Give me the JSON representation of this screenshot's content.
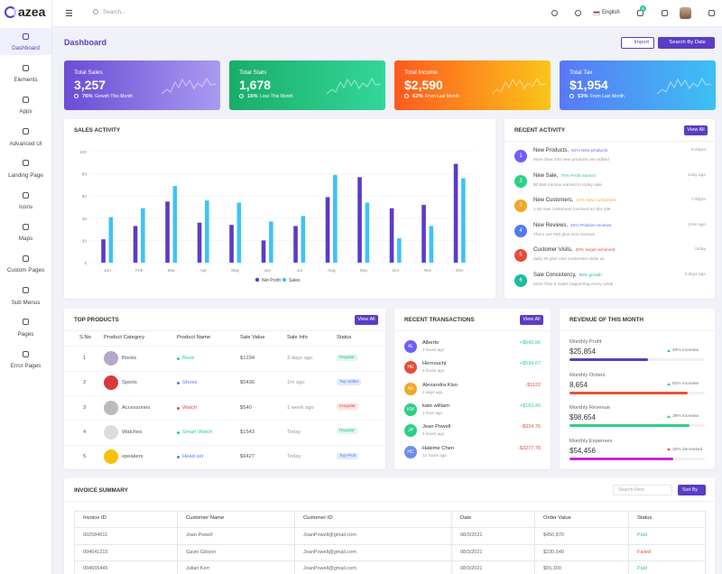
{
  "header": {
    "logo": "azea",
    "search_placeholder": "Search...",
    "language": "English",
    "mail_badge": "5"
  },
  "sidebar": {
    "items": [
      "Dashboard",
      "Elements",
      "Apps",
      "Advanced UI",
      "Landing Page",
      "Icons",
      "Maps",
      "Custom Pages",
      "Sub Menus",
      "Pages",
      "Error Pages"
    ]
  },
  "page": {
    "title": "Dashboard",
    "buttons": [
      "Import",
      "Search By Date"
    ]
  },
  "stats": [
    {
      "title": "Total Sales",
      "value": "3,257",
      "percent": "76%",
      "note": "Growth This Month"
    },
    {
      "title": "Total Stats",
      "value": "1,678",
      "percent": "15%",
      "note": "Loss This Month"
    },
    {
      "title": "Total Income",
      "value": "$2,590",
      "percent": "62%",
      "note": "From Last Month"
    },
    {
      "title": "Total Tax",
      "value": "$1,954",
      "percent": "53%",
      "note": "From Last Month"
    }
  ],
  "chart_data": {
    "type": "bar",
    "title": "SALES ACTIVITY",
    "categories": [
      "Jan",
      "Feb",
      "Mar",
      "Apr",
      "May",
      "Jun",
      "Jul",
      "Aug",
      "Sep",
      "Oct",
      "Nov",
      "Dec"
    ],
    "series": [
      {
        "name": "Net Profit",
        "color": "#5b3cc4",
        "values": [
          21,
          33,
          55,
          36,
          34,
          20,
          33,
          59,
          77,
          49,
          52,
          89
        ]
      },
      {
        "name": "Sales",
        "color": "#3ec3f5",
        "values": [
          41,
          49,
          69,
          56,
          54,
          37,
          42,
          79,
          54,
          22,
          33,
          76
        ]
      }
    ],
    "ylim": [
      0,
      100
    ],
    "yticks": [
      0,
      20,
      40,
      60,
      80,
      100
    ],
    "grid": true,
    "legend": "bottom"
  },
  "recent_activity": {
    "title": "RECENT ACTIVITY",
    "button": "View All",
    "items": [
      {
        "number": "1",
        "title": "New Products,",
        "tag": "62% New products",
        "description": "More than 200 new products are added",
        "time": "6:45pm"
      },
      {
        "number": "2",
        "title": "New Sale,",
        "tag": "76% Profit earned",
        "description": "$2,566 income earned in today sale",
        "time": "1day ago"
      },
      {
        "number": "3",
        "title": "New Customers,",
        "tag": "24% New customers",
        "description": "1.5k new customers involved so this site",
        "time": "7:40pm"
      },
      {
        "number": "4",
        "title": "New Reviews,",
        "tag": "46% Positive reviews",
        "description": "There are 500 plus new reviews",
        "time": "1min ago"
      },
      {
        "number": "5",
        "title": "Customer Visits,",
        "tag": "33% target achieved",
        "description": "daily 20 plus new customers visits us",
        "time": "today"
      },
      {
        "number": "6",
        "title": "Sale Consistency,",
        "tag": "90% growth",
        "description": "More than 5 Sales happening every week",
        "time": "3 days ago"
      }
    ]
  },
  "top_products": {
    "title": "TOP PRODUCTS",
    "button": "View All",
    "columns": [
      "S.No",
      "Product Category",
      "Product Name",
      "Sale Value",
      "Sale Info",
      "Status"
    ],
    "rows": [
      [
        "1",
        "Books",
        "Book",
        "$1234",
        "3 days ago",
        "Regular"
      ],
      [
        "2",
        "Sports",
        "Shoes",
        "$5436",
        "1hr ago",
        "Top Seller"
      ],
      [
        "3",
        "Accessories",
        "Watch",
        "$540",
        "1 week ago",
        "Irregular"
      ],
      [
        "4",
        "Watches",
        "Smart Watch",
        "$1543",
        "Today",
        "Regular"
      ],
      [
        "5",
        "speakers",
        "Head set",
        "$6427",
        "Today",
        "Top Pick"
      ]
    ]
  },
  "recent_transactions": {
    "title": "RECENT TRANSACTIONS",
    "button": "View All",
    "items": [
      {
        "initials": "AL",
        "name": "Alberto",
        "time": "2 hours ago",
        "amount": "+$543.96"
      },
      {
        "initials": "HE",
        "name": "Hernouchi",
        "time": "6 hours ago",
        "amount": "+$534.67"
      },
      {
        "initials": "AK",
        "name": "Alexandra Kiso",
        "time": "2 days ago",
        "amount": "-$1122"
      },
      {
        "initials": "KW",
        "name": "kate william",
        "time": "1 hour ago",
        "amount": "+$163.45"
      },
      {
        "initials": "JP",
        "name": "Jean Powell",
        "time": "5 hours ago",
        "amount": "-$324.76"
      },
      {
        "initials": "HC",
        "name": "Hakime Chen",
        "time": "12 hours ago",
        "amount": "-$3277.78"
      }
    ]
  },
  "revenue": {
    "title": "REVENUE OF THIS MONTH",
    "items": [
      {
        "label": "Monthly Profit",
        "value": "$25,854",
        "change": "40% Increase"
      },
      {
        "label": "Monthly Orders",
        "value": "8,654",
        "change": "62% Increase"
      },
      {
        "label": "Monthly Revenue",
        "value": "$98,654",
        "change": "38% Increase"
      },
      {
        "label": "Monthly Expenses",
        "value": "$54,456",
        "change": "30% decreased"
      }
    ]
  },
  "invoice": {
    "title": "INVOICE SUMMARY",
    "search_placeholder": "Search Here",
    "sort_button": "Sort By",
    "columns": [
      "Invoice ID",
      "Customer Name",
      "Customer ID",
      "Date",
      "Order Value",
      "Status"
    ],
    "rows": [
      [
        "002584611",
        "Joan Powell",
        "JoanPowell@gmail.com",
        "08/3/2021",
        "$450,870",
        "Paid"
      ],
      [
        "004641215",
        "Gavin Gibson",
        "JoanPowell@gmail.com",
        "08/3/2021",
        "$230,540",
        "Failed"
      ],
      [
        "004655445",
        "Julian Kerr",
        "JoanPowell@gmail.com",
        "08/3/2021",
        "$55,300",
        "Paid"
      ]
    ]
  }
}
